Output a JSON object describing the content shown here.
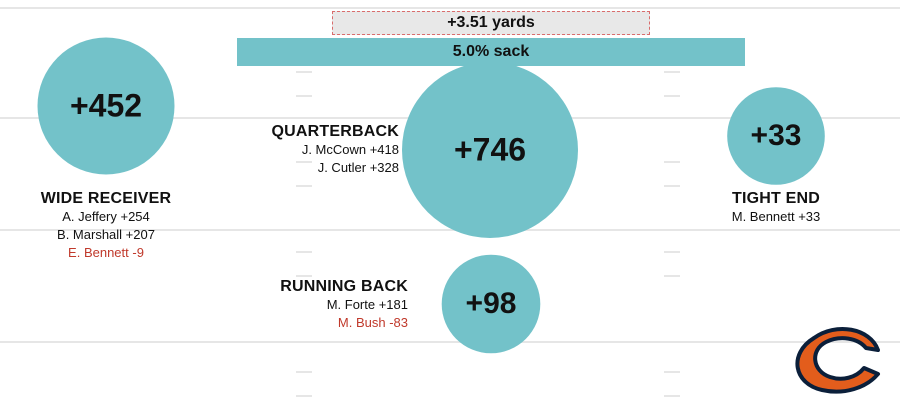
{
  "header": {
    "yards_label": "+3.51 yards",
    "sack_label": "5.0% sack",
    "sack_rate_pct": 5.0
  },
  "chart_data": {
    "type": "bubble",
    "unit": "points",
    "groups": [
      {
        "key": "wr",
        "title": "WIDE RECEIVER",
        "total": 452,
        "total_label": "+452",
        "players": [
          {
            "name": "A. Jeffery",
            "value": 254,
            "label": "A. Jeffery +254"
          },
          {
            "name": "B. Marshall",
            "value": 207,
            "label": "B. Marshall +207"
          },
          {
            "name": "E. Bennett",
            "value": -9,
            "label": "E. Bennett -9"
          }
        ]
      },
      {
        "key": "qb",
        "title": "QUARTERBACK",
        "total": 746,
        "total_label": "+746",
        "players": [
          {
            "name": "J. McCown",
            "value": 418,
            "label": "J. McCown +418"
          },
          {
            "name": "J. Cutler",
            "value": 328,
            "label": "J. Cutler +328"
          }
        ]
      },
      {
        "key": "te",
        "title": "TIGHT END",
        "total": 33,
        "total_label": "+33",
        "players": [
          {
            "name": "M. Bennett",
            "value": 33,
            "label": "M. Bennett +33"
          }
        ]
      },
      {
        "key": "rb",
        "title": "RUNNING BACK",
        "total": 98,
        "total_label": "+98",
        "players": [
          {
            "name": "M. Forte",
            "value": 181,
            "label": "M. Forte +181"
          },
          {
            "name": "M. Bush",
            "value": -83,
            "label": "M. Bush -83"
          }
        ]
      }
    ]
  },
  "colors": {
    "bubble": "#73c2c9",
    "negative_text": "#c0392b",
    "text": "#111111",
    "field_line": "#e6e6e6",
    "logo_orange": "#e35d1c",
    "logo_navy": "#0b1f3a"
  },
  "logo": {
    "icon": "chicago-bears-c-logo"
  }
}
